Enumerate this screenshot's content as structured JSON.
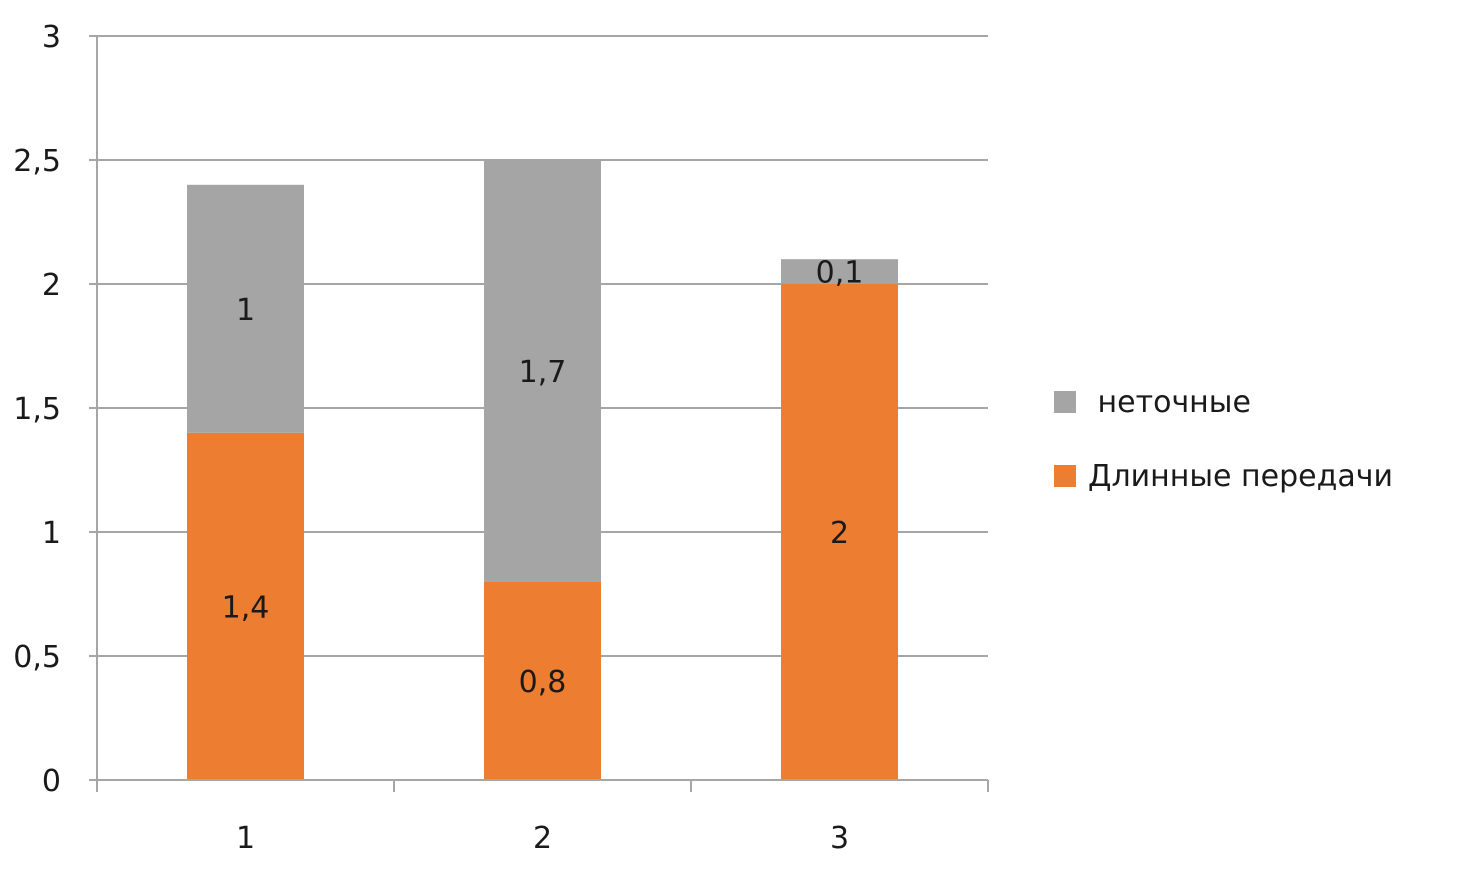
{
  "chart_data": {
    "type": "bar",
    "stacked": true,
    "categories": [
      "1",
      "2",
      "3"
    ],
    "series": [
      {
        "name": "Длинные передачи",
        "values": [
          1.4,
          0.8,
          2
        ],
        "labels": [
          "1,4",
          "0,8",
          "2"
        ],
        "color": "#ed7d31"
      },
      {
        "name": " неточные",
        "values": [
          1,
          1.7,
          0.1
        ],
        "labels": [
          "1",
          "1,7",
          "0,1"
        ],
        "color": "#a5a5a5"
      }
    ],
    "ylim": [
      0,
      3
    ],
    "yticks": [
      0,
      0.5,
      1,
      1.5,
      2,
      2.5,
      3
    ],
    "ytick_labels": [
      "0",
      "0,5",
      "1",
      "1,5",
      "2",
      "2,5",
      "3"
    ],
    "title": "",
    "xlabel": "",
    "ylabel": "",
    "grid": true,
    "legend_position": "right",
    "legend_order": [
      1,
      0
    ]
  }
}
